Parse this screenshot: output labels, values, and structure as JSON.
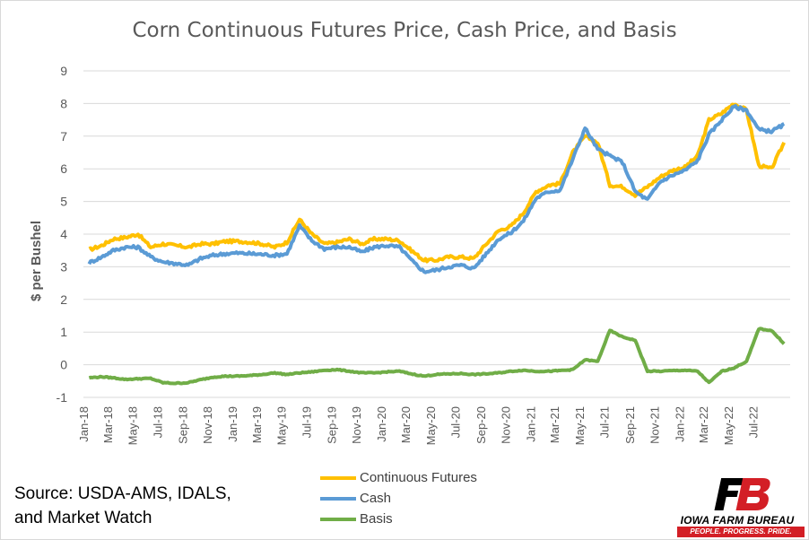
{
  "chart_data": {
    "type": "line",
    "title": "Corn Continuous Futures Price, Cash Price, and Basis",
    "xlabel": "",
    "ylabel": "$ per Bushel",
    "ylim": [
      -1,
      9
    ],
    "yticks": [
      -1,
      0,
      1,
      2,
      3,
      4,
      5,
      6,
      7,
      8,
      9
    ],
    "xlim": [
      "2018-01-01",
      "2022-09-30"
    ],
    "xticks": [
      "Jan-18",
      "Mar-18",
      "May-18",
      "Jul-18",
      "Sep-18",
      "Nov-18",
      "Jan-19",
      "Mar-19",
      "May-19",
      "Jul-19",
      "Sep-19",
      "Nov-19",
      "Jan-20",
      "Mar-20",
      "May-20",
      "Jul-20",
      "Sep-20",
      "Nov-20",
      "Jan-21",
      "Mar-21",
      "May-21",
      "Jul-21",
      "Sep-21",
      "Nov-21",
      "Jan-22",
      "Mar-22",
      "May-22",
      "Jul-22"
    ],
    "grid": true,
    "legend_position": "bottom",
    "x": [
      "2018-01",
      "2018-02",
      "2018-03",
      "2018-04",
      "2018-05",
      "2018-06",
      "2018-07",
      "2018-08",
      "2018-09",
      "2018-10",
      "2018-11",
      "2018-12",
      "2019-01",
      "2019-02",
      "2019-03",
      "2019-04",
      "2019-05",
      "2019-06",
      "2019-07",
      "2019-08",
      "2019-09",
      "2019-10",
      "2019-11",
      "2019-12",
      "2020-01",
      "2020-02",
      "2020-03",
      "2020-04",
      "2020-05",
      "2020-06",
      "2020-07",
      "2020-08",
      "2020-09",
      "2020-10",
      "2020-11",
      "2020-12",
      "2021-01",
      "2021-02",
      "2021-03",
      "2021-04",
      "2021-05",
      "2021-06",
      "2021-07",
      "2021-08",
      "2021-09",
      "2021-10",
      "2021-11",
      "2021-12",
      "2022-01",
      "2022-02",
      "2022-03",
      "2022-04",
      "2022-05",
      "2022-06",
      "2022-07",
      "2022-08",
      "2022-09"
    ],
    "series": [
      {
        "name": "Continuous Futures",
        "color": "#ffc000",
        "values": [
          3.52,
          3.65,
          3.85,
          3.9,
          4.0,
          3.6,
          3.7,
          3.65,
          3.6,
          3.7,
          3.7,
          3.78,
          3.78,
          3.75,
          3.7,
          3.6,
          3.75,
          4.45,
          4.0,
          3.7,
          3.75,
          3.85,
          3.7,
          3.85,
          3.85,
          3.8,
          3.5,
          3.2,
          3.2,
          3.3,
          3.3,
          3.25,
          3.7,
          4.1,
          4.25,
          4.65,
          5.3,
          5.5,
          5.55,
          6.5,
          7.0,
          6.8,
          5.5,
          5.45,
          5.2,
          5.45,
          5.75,
          5.95,
          6.05,
          6.4,
          7.5,
          7.7,
          8.0,
          7.8,
          6.1,
          6.0,
          6.8
        ]
      },
      {
        "name": "Cash",
        "color": "#5b9bd5",
        "values": [
          3.12,
          3.3,
          3.5,
          3.6,
          3.6,
          3.3,
          3.15,
          3.1,
          3.05,
          3.25,
          3.35,
          3.4,
          3.42,
          3.4,
          3.38,
          3.35,
          3.4,
          4.25,
          3.8,
          3.55,
          3.6,
          3.6,
          3.45,
          3.6,
          3.65,
          3.6,
          3.2,
          2.85,
          2.9,
          3.0,
          3.05,
          2.95,
          3.4,
          3.85,
          4.05,
          4.4,
          5.1,
          5.3,
          5.35,
          6.3,
          7.25,
          6.6,
          6.4,
          6.2,
          5.3,
          5.05,
          5.6,
          5.8,
          5.95,
          6.25,
          7.05,
          7.5,
          7.9,
          7.8,
          7.2,
          7.15,
          7.35
        ]
      },
      {
        "name": "Basis",
        "color": "#70ad47",
        "values": [
          -0.4,
          -0.37,
          -0.4,
          -0.45,
          -0.43,
          -0.42,
          -0.55,
          -0.57,
          -0.55,
          -0.46,
          -0.38,
          -0.35,
          -0.35,
          -0.33,
          -0.3,
          -0.25,
          -0.3,
          -0.25,
          -0.22,
          -0.17,
          -0.15,
          -0.2,
          -0.25,
          -0.25,
          -0.22,
          -0.2,
          -0.28,
          -0.35,
          -0.3,
          -0.28,
          -0.27,
          -0.3,
          -0.28,
          -0.25,
          -0.2,
          -0.17,
          -0.2,
          -0.2,
          -0.18,
          -0.15,
          0.15,
          0.1,
          1.05,
          0.85,
          0.75,
          -0.2,
          -0.2,
          -0.18,
          -0.17,
          -0.2,
          -0.55,
          -0.2,
          -0.1,
          0.1,
          1.1,
          1.05,
          0.65
        ]
      }
    ]
  },
  "source": {
    "line1": "Source: USDA-AMS, IDALS,",
    "line2": "and Market Watch"
  },
  "logo": {
    "name": "IOWA FARM BUREAU",
    "tagline": "PEOPLE. PROGRESS. PRIDE.",
    "color": "#d31f26"
  }
}
